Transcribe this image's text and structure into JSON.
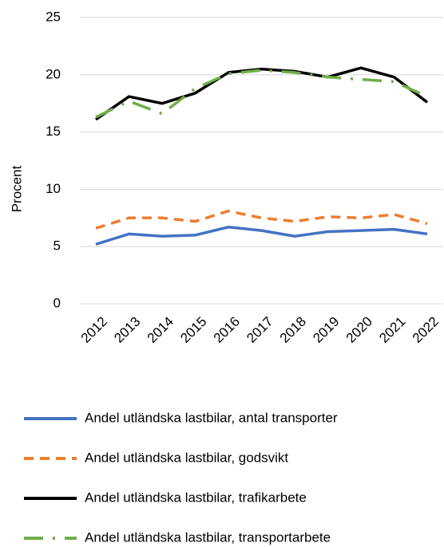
{
  "chart_data": {
    "type": "line",
    "ylabel": "Procent",
    "categories": [
      "2012",
      "2013",
      "2014",
      "2015",
      "2016",
      "2017",
      "2018",
      "2019",
      "2020",
      "2021",
      "2022"
    ],
    "ylim": [
      0,
      25
    ],
    "yticks": [
      0,
      5,
      10,
      15,
      20,
      25
    ],
    "grid": true,
    "legend": "bottom",
    "series": [
      {
        "name": "Andel utländska lastbilar, antal transporter",
        "color": "#4472c4",
        "dash": "solid",
        "values": [
          5.2,
          6.1,
          5.9,
          6.0,
          6.7,
          6.4,
          5.9,
          6.3,
          6.4,
          6.5,
          6.1
        ]
      },
      {
        "name": "Andel utländska lastbilar, godsvikt",
        "color": "#ed7d31",
        "dash": "dashed",
        "values": [
          6.6,
          7.5,
          7.5,
          7.2,
          8.1,
          7.5,
          7.2,
          7.6,
          7.5,
          7.8,
          7.0
        ]
      },
      {
        "name": "Andel utländska lastbilar, trafikarbete",
        "color": "#000000",
        "dash": "solid",
        "values": [
          16.1,
          18.1,
          17.5,
          18.4,
          20.2,
          20.5,
          20.3,
          19.8,
          20.6,
          19.8,
          17.6
        ]
      },
      {
        "name": "Andel utländska lastbilar, transportarbete",
        "color": "#70ad47",
        "dash": "dashdot",
        "values": [
          16.3,
          17.7,
          16.6,
          18.8,
          20.1,
          20.4,
          20.2,
          19.8,
          19.6,
          19.4,
          18.1
        ]
      }
    ]
  }
}
